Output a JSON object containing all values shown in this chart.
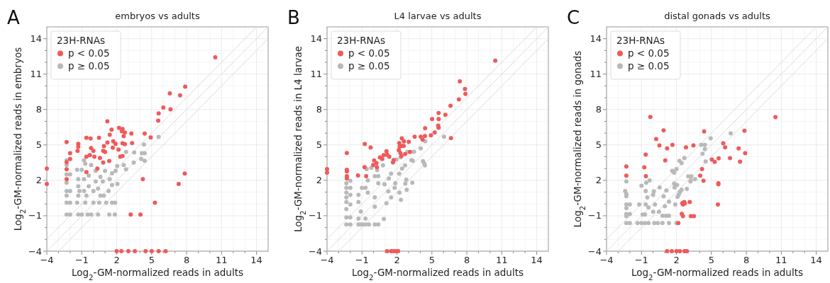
{
  "chart_data": [
    {
      "type": "scatter",
      "title": "embryos vs adults",
      "xlabel": "Log$_{2}$-GM-normalized reads in adults",
      "ylabel": "Log$_{2}$-GM-normalized reads in embryos",
      "legend_title": "23H-RNAs",
      "annotations": [
        "A"
      ],
      "legend": "top left",
      "marker": "circle",
      "grid": true,
      "xlim": [
        -4,
        15
      ],
      "ylim": [
        -4,
        15
      ],
      "xticks": [
        -4,
        {
          "value": -3,
          "label": null
        },
        {
          "value": -2,
          "label": null
        },
        -1,
        {
          "value": 0,
          "label": null
        },
        {
          "value": 1,
          "label": null
        },
        2,
        {
          "value": 3,
          "label": null
        },
        {
          "value": 4,
          "label": null
        },
        5,
        {
          "value": 6,
          "label": null
        },
        {
          "value": 7,
          "label": null
        },
        8,
        {
          "value": 9,
          "label": null
        },
        {
          "value": 10,
          "label": null
        },
        11,
        {
          "value": 12,
          "label": null
        },
        {
          "value": 13,
          "label": null
        },
        14
      ],
      "yticks": [
        -4,
        {
          "value": -3,
          "label": null
        },
        {
          "value": -2,
          "label": null
        },
        -1,
        {
          "value": 0,
          "label": null
        },
        {
          "value": 1,
          "label": null
        },
        2,
        {
          "value": 3,
          "label": null
        },
        {
          "value": 4,
          "label": null
        },
        5,
        {
          "value": 6,
          "label": null
        },
        {
          "value": 7,
          "label": null
        },
        8,
        {
          "value": 9,
          "label": null
        },
        {
          "value": 10,
          "label": null
        },
        11,
        {
          "value": 12,
          "label": null
        },
        {
          "value": 13,
          "label": null
        },
        14
      ],
      "series": [
        {
          "type": "line",
          "marker": "none",
          "color": "#dcdcdc",
          "x": [
            -4,
            14
          ],
          "values": [
            -3,
            15
          ]
        },
        {
          "type": "line",
          "marker": "none",
          "color": "#dcdcdc",
          "x": [
            -4,
            15
          ],
          "values": [
            -4,
            15
          ]
        },
        {
          "type": "line",
          "marker": "none",
          "color": "#dcdcdc",
          "x": [
            -3,
            15
          ],
          "values": [
            -4,
            14
          ]
        },
        {
          "name": "p ≥ 0.05",
          "color": "#b9b9b9",
          "x": [
            5.6,
            4.34,
            4.16,
            4.4,
            3.5,
            2.8,
            4.1,
            4.4,
            3.46,
            2.6,
            2.8,
            2.04,
            1.9,
            1.6,
            1.4,
            2.06,
            1.6,
            1.3,
            -0.8,
            -0.7,
            -0.2,
            -1.4,
            -1.0,
            0.2,
            1.0,
            -0.4,
            0.6,
            -1.3,
            -0.8,
            0.2,
            0.8,
            -2.3,
            -2.0,
            -2.3,
            -2.3,
            -2.0,
            -1.3,
            -0.4,
            0.4,
            -1.2,
            -0.8,
            0,
            -2.3,
            -1.3,
            -0.6,
            0.6,
            0.9,
            -2.3,
            -2.0,
            -1.4,
            -0.7,
            0,
            0.5,
            1.1,
            1.6,
            1.86,
            -2.3,
            -2.0,
            -1.3,
            -1.0,
            -0.5,
            -0.2,
            0.4,
            1.36,
            1.84,
            -2.3,
            -2.3
          ],
          "values": [
            5.68,
            5.04,
            4.3,
            4.3,
            4.36,
            4.4,
            3.8,
            3.66,
            3.5,
            3.3,
            2.94,
            3.2,
            2.8,
            2.6,
            2.1,
            1.7,
            1.6,
            1.1,
            3.7,
            3.4,
            3.3,
            2.9,
            2.9,
            2.8,
            2.8,
            2.4,
            2.3,
            2.1,
            2.1,
            1.9,
            1.9,
            2.5,
            2.5,
            1.8,
            1.1,
            1.1,
            1.5,
            1.5,
            1.3,
            1.1,
            1.1,
            1.1,
            0.7,
            0.7,
            0.7,
            0.7,
            0.7,
            0.1,
            0.1,
            0.1,
            0.1,
            0.1,
            0.1,
            0.1,
            0.1,
            0.1,
            -0.9,
            -0.9,
            -0.9,
            -0.9,
            -0.9,
            -0.9,
            -0.9,
            -0.9,
            -0.9,
            3.3,
            3.7
          ]
        },
        {
          "name": "p < 0.05",
          "color": "#ef5a5a",
          "x": [
            10.46,
            7.88,
            6.56,
            7.44,
            6.0,
            6.62,
            5.6,
            5.56,
            1.2,
            1.56,
            2.2,
            2.5,
            2.7,
            3.26,
            4.4,
            4.92,
            -0.6,
            -0.24,
            0.48,
            1.4,
            2.44,
            2.6,
            1.7,
            1.2,
            1.9,
            2.5,
            3.32,
            2.7,
            -2.3,
            -1.3,
            -1.3,
            -1.36,
            -2.0,
            -0.2,
            0,
            0.9,
            0.84,
            1.66,
            2.16,
            -0.6,
            -0.3,
            0.08,
            0.56,
            1.0,
            1.36,
            2.3,
            2.5,
            -2.0,
            -2.3,
            -2.3,
            -2.3,
            0.84,
            0.34,
            -0.6,
            -4,
            -4,
            4.24,
            7.84,
            7.32,
            5.28,
            3.2,
            4.04,
            2.0,
            2.4,
            3.0,
            3.56,
            4.48,
            5.0,
            5.6,
            6.2
          ],
          "values": [
            12.42,
            9.94,
            9.36,
            9.2,
            8.16,
            8.02,
            7.68,
            7.06,
            7.0,
            6.3,
            6.44,
            6.36,
            6.06,
            5.96,
            5.96,
            5.64,
            5.6,
            5.54,
            5.6,
            5.86,
            6.16,
            5.74,
            5.3,
            5.2,
            5.1,
            5.14,
            5.16,
            5.06,
            5.24,
            5.1,
            4.84,
            4.5,
            4.3,
            4.74,
            4.5,
            4.9,
            4.5,
            4.76,
            4.6,
            4.0,
            4.14,
            4.0,
            3.9,
            4.4,
            3.64,
            4.0,
            4.06,
            3.8,
            3.54,
            2.94,
            2.1,
            3.5,
            3.0,
            2.7,
            3.0,
            1.7,
            2.1,
            2.58,
            1.7,
            0.1,
            -0.9,
            -0.9,
            -4,
            -4,
            -4,
            -4,
            -4,
            -4,
            -4,
            -4
          ]
        }
      ]
    },
    {
      "type": "scatter",
      "title": "L4 larvae vs adults",
      "xlabel": "Log$_{2}$-GM-normalized reads in adults",
      "ylabel": "Log$_{2}$-GM-normalized reads in L4 larvae",
      "legend_title": "23H-RNAs",
      "annotations": [
        "B"
      ],
      "legend": "top left",
      "marker": "circle",
      "grid": true,
      "xlim": [
        -4,
        15
      ],
      "ylim": [
        -4,
        15
      ],
      "xticks": [
        -4,
        {
          "value": -3,
          "label": null
        },
        {
          "value": -2,
          "label": null
        },
        -1,
        {
          "value": 0,
          "label": null
        },
        {
          "value": 1,
          "label": null
        },
        2,
        {
          "value": 3,
          "label": null
        },
        {
          "value": 4,
          "label": null
        },
        5,
        {
          "value": 6,
          "label": null
        },
        {
          "value": 7,
          "label": null
        },
        8,
        {
          "value": 9,
          "label": null
        },
        {
          "value": 10,
          "label": null
        },
        11,
        {
          "value": 12,
          "label": null
        },
        {
          "value": 13,
          "label": null
        },
        14
      ],
      "yticks": [
        -4,
        {
          "value": -3,
          "label": null
        },
        {
          "value": -2,
          "label": null
        },
        -1,
        {
          "value": 0,
          "label": null
        },
        {
          "value": 1,
          "label": null
        },
        2,
        {
          "value": 3,
          "label": null
        },
        {
          "value": 4,
          "label": null
        },
        5,
        {
          "value": 6,
          "label": null
        },
        {
          "value": 7,
          "label": null
        },
        8,
        {
          "value": 9,
          "label": null
        },
        {
          "value": 10,
          "label": null
        },
        11,
        {
          "value": 12,
          "label": null
        },
        {
          "value": 13,
          "label": null
        },
        14
      ],
      "series": [
        {
          "type": "line",
          "marker": "none",
          "color": "#dcdcdc",
          "x": [
            -4,
            14
          ],
          "values": [
            -3,
            15
          ]
        },
        {
          "type": "line",
          "marker": "none",
          "color": "#dcdcdc",
          "x": [
            -4,
            15
          ],
          "values": [
            -4,
            15
          ]
        },
        {
          "type": "line",
          "marker": "none",
          "color": "#dcdcdc",
          "x": [
            -3,
            15
          ],
          "values": [
            -4,
            14
          ]
        },
        {
          "name": "p ≥ 0.05",
          "color": "#b9b9b9",
          "x": [
            6.04,
            4.44,
            4.04,
            3.46,
            2.9,
            3.24,
            3.36,
            4.24,
            4.32,
            4.4,
            2.32,
            1.96,
            2.7,
            2.44,
            2.2,
            2.8,
            3.32,
            2.72,
            2.84,
            2.22,
            2.34,
            1.86,
            1.8,
            1.5,
            1.3,
            0.94,
            1.26,
            1.5,
            1.1,
            0.88,
            0.4,
            0.1,
            -0.6,
            -0.5,
            -0.7,
            -0.5,
            0.1,
            0.1,
            -1.0,
            -1.3,
            -1.3,
            -1.1,
            -0.7,
            -1.3,
            -0.96,
            -1.3,
            -1.1,
            -0.7,
            -0.4,
            0.1,
            0.4,
            -2.34,
            -2.34,
            -2.34,
            -2.34,
            -2.34,
            -2.34,
            -2.34,
            -2.34,
            -2.0,
            -2.0,
            -2.0,
            -2.0,
            -2.0,
            -2.0,
            -0.2,
            0.3,
            0.8,
            0.4
          ],
          "values": [
            5.7,
            5.3,
            4.7,
            4.42,
            4.4,
            3.72,
            3.66,
            3.62,
            3.46,
            3.26,
            3.96,
            3.76,
            3.26,
            3.0,
            2.56,
            2.06,
            1.8,
            1.72,
            1.2,
            0.96,
            0.34,
            1.76,
            1.36,
            2.56,
            2.16,
            1.66,
            1.06,
            0.56,
            0.06,
            -1.28,
            1.76,
            2.36,
            2.96,
            2.0,
            1.36,
            0.96,
            0.56,
            -0.24,
            1.36,
            0.76,
            0.16,
            -0.64,
            -1.24,
            -1.24,
            -1.74,
            -1.74,
            -1.74,
            -1.74,
            -1.74,
            -1.74,
            -1.74,
            1.76,
            1.36,
            0.96,
            0.56,
            0.16,
            -0.44,
            -1.14,
            -1.74,
            1.96,
            1.36,
            0.76,
            -0.04,
            -1.14,
            -1.74,
            3.06,
            2.86,
            3.26,
            2.36
          ]
        },
        {
          "name": "p < 0.05",
          "color": "#ef5a5a",
          "x": [
            10.44,
            7.4,
            7.84,
            7.88,
            7.32,
            6.6,
            5.58,
            6.16,
            5.02,
            5.58,
            5.54,
            5.58,
            4.42,
            5.24,
            4.92,
            3.52,
            4.04,
            4.2,
            4.4,
            6.64,
            2.42,
            2.6,
            3.02,
            2.2,
            2.46,
            2.58,
            2.24,
            2.16,
            2.3,
            2.7,
            2.38,
            3.12,
            -0.76,
            -0.26,
            -2.3,
            1.1,
            1.16,
            0.86,
            1.34,
            0.54,
            0.74,
            0.04,
            0.24,
            -0.04,
            0.28,
            1.72,
            1.66,
            -0.78,
            -0.64,
            -1.34,
            -2.3,
            -2.3,
            -2.3,
            -2.3,
            -4,
            -4,
            1.16,
            1.5,
            1.7,
            1.9,
            2.1
          ],
          "values": [
            12.14,
            10.38,
            9.74,
            9.32,
            8.86,
            8.32,
            7.7,
            7.56,
            7.2,
            7.2,
            6.64,
            6.46,
            6.42,
            6.06,
            5.82,
            5.7,
            5.7,
            5.46,
            5.76,
            5.58,
            5.56,
            5.3,
            5.26,
            5.16,
            4.92,
            4.92,
            4.86,
            4.56,
            4.32,
            4.22,
            4.06,
            4.4,
            5.08,
            4.78,
            4.32,
            4.46,
            4.16,
            4.14,
            4.0,
            3.94,
            3.8,
            3.68,
            3.46,
            3.3,
            3.12,
            3.72,
            3.52,
            3.12,
            2.36,
            2.42,
            2.9,
            2.76,
            2.36,
            2.16,
            2.96,
            2.66,
            -4,
            -4,
            -4,
            -4,
            -4
          ]
        }
      ]
    },
    {
      "type": "scatter",
      "title": "distal gonads vs adults",
      "xlabel": "Log$_{2}$-GM-normalized reads in adults",
      "ylabel": "Log$_{2}$-GM-normalized reads in gonads",
      "legend_title": "23H-RNAs",
      "annotations": [
        "C"
      ],
      "legend": "top left",
      "marker": "circle",
      "grid": true,
      "xlim": [
        -4,
        15
      ],
      "ylim": [
        -4,
        15
      ],
      "xticks": [
        -4,
        {
          "value": -3,
          "label": null
        },
        {
          "value": -2,
          "label": null
        },
        -1,
        {
          "value": 0,
          "label": null
        },
        {
          "value": 1,
          "label": null
        },
        2,
        {
          "value": 3,
          "label": null
        },
        {
          "value": 4,
          "label": null
        },
        5,
        {
          "value": 6,
          "label": null
        },
        {
          "value": 7,
          "label": null
        },
        8,
        {
          "value": 9,
          "label": null
        },
        {
          "value": 10,
          "label": null
        },
        11,
        {
          "value": 12,
          "label": null
        },
        {
          "value": 13,
          "label": null
        },
        14
      ],
      "yticks": [
        -4,
        {
          "value": -3,
          "label": null
        },
        {
          "value": -2,
          "label": null
        },
        -1,
        {
          "value": 0,
          "label": null
        },
        {
          "value": 1,
          "label": null
        },
        2,
        {
          "value": 3,
          "label": null
        },
        {
          "value": 4,
          "label": null
        },
        5,
        {
          "value": 6,
          "label": null
        },
        {
          "value": 7,
          "label": null
        },
        8,
        {
          "value": 9,
          "label": null
        },
        {
          "value": 10,
          "label": null
        },
        11,
        {
          "value": 12,
          "label": null
        },
        {
          "value": 13,
          "label": null
        },
        14
      ],
      "series": [
        {
          "type": "line",
          "marker": "none",
          "color": "#dcdcdc",
          "x": [
            -4,
            14
          ],
          "values": [
            -3,
            15
          ]
        },
        {
          "type": "line",
          "marker": "none",
          "color": "#dcdcdc",
          "x": [
            -4,
            15
          ],
          "values": [
            -4,
            15
          ]
        },
        {
          "type": "line",
          "marker": "none",
          "color": "#dcdcdc",
          "x": [
            -3,
            15
          ],
          "values": [
            -4,
            14
          ]
        },
        {
          "name": "p ≥ 0.05",
          "color": "#b9b9b9",
          "x": [
            6.66,
            4.94,
            4.12,
            4.44,
            4.44,
            4.24,
            4.5,
            2.68,
            2.44,
            2.26,
            2.0,
            1.78,
            1.64,
            1.8,
            3.02,
            3.28,
            3.6,
            3.24,
            3.2,
            2.9,
            2.44,
            2.3,
            2.2,
            2.1,
            1.8,
            2.06,
            1.84,
            0.56,
            1.14,
            0.9,
            1.36,
            1.0,
            1.9,
            0.06,
            0.0,
            -0.5,
            -0.3,
            -0.6,
            -0.64,
            -1.0,
            -1.2,
            -0.64,
            0.16,
            0.5,
            0.0,
            -0.4,
            -0.9,
            -0.7,
            0.8,
            1.1,
            1.36,
            -2.3,
            -2.4,
            -2.3,
            -2.3,
            -2.3,
            -2.3,
            -2.0,
            -2.3,
            -2.3,
            -2.0,
            -2.3,
            -2.0,
            -1.34,
            -1.0,
            -0.7,
            -0.4,
            0.1,
            0.4,
            0.8,
            1.36,
            2.0
          ],
          "values": [
            5.98,
            5.56,
            5.0,
            5.0,
            4.64,
            4.26,
            3.6,
            3.9,
            3.46,
            3.66,
            2.96,
            2.72,
            2.8,
            2.66,
            2.34,
            2.34,
            2.1,
            2.0,
            1.9,
            1.28,
            1.2,
            1.0,
            0.78,
            0.6,
            1.72,
            1.6,
            1.4,
            1.4,
            1.14,
            0.64,
            0.2,
            -0.2,
            -0.04,
            1.06,
            0.76,
            0.56,
            2.0,
            1.8,
            1.1,
            1.54,
            -0.04,
            -0.04,
            -0.04,
            -0.66,
            -0.66,
            -0.3,
            -0.9,
            -0.9,
            -1.0,
            -1.0,
            -1.0,
            1.9,
            1.1,
            0.84,
            0.66,
            -0.04,
            -0.36,
            -0.04,
            -0.86,
            -1.04,
            -0.86,
            -1.62,
            -1.62,
            -1.62,
            -1.62,
            -1.62,
            -1.62,
            -1.62,
            -1.62,
            -1.62,
            -1.62,
            -1.62
          ]
        },
        {
          "name": "p < 0.05",
          "color": "#ef5a5a",
          "x": [
            -0.24,
            10.5,
            0.9,
            4.38,
            7.84,
            0.26,
            0.54,
            1.66,
            1.2,
            2.82,
            3.46,
            6.02,
            6.18,
            7.34,
            7.9,
            -0.64,
            1.04,
            -2.3,
            -2.3,
            -0.76,
            -0.62,
            4.2,
            4.04,
            4.32,
            5.04,
            5.28,
            5.62,
            6.6,
            7.46,
            5.6,
            5.6,
            5.56,
            3.14,
            2.66,
            2.72,
            2.5,
            2.56,
            2.46,
            2.56,
            3.24,
            3.5,
            2.16,
            1.2,
            1.6,
            2.0,
            2.3,
            2.7,
            2.9
          ],
          "values": [
            7.38,
            7.36,
            6.24,
            6.14,
            6.2,
            5.5,
            4.96,
            5.0,
            4.7,
            4.8,
            4.96,
            5.14,
            4.8,
            4.7,
            4.3,
            4.18,
            3.68,
            3.18,
            2.4,
            3.1,
            2.36,
            2.96,
            2.4,
            1.96,
            3.76,
            3.56,
            3.86,
            3.88,
            3.58,
            1.76,
            1.66,
            -0.04,
            0.16,
            0.16,
            0.04,
            0.06,
            -0.04,
            -0.84,
            -1.04,
            -1.04,
            -1.04,
            -1.62,
            -4,
            -4,
            -4,
            -4,
            -4,
            -4
          ]
        }
      ]
    }
  ]
}
